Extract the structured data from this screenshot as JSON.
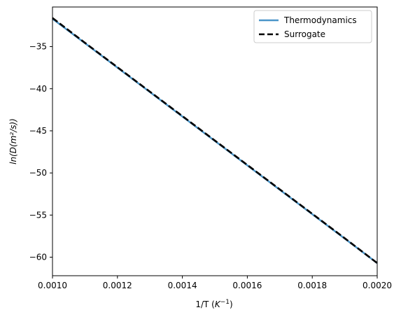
{
  "chart_data": {
    "type": "line",
    "title": "",
    "xlabel": "1/T",
    "xlabel_unit_base": "K",
    "xlabel_unit_exp": "−1",
    "ylabel": "ln(D(m²/s))",
    "xlim": [
      0.001,
      0.002
    ],
    "ylim": [
      -62.2,
      -30.3
    ],
    "xticks": [
      0.001,
      0.0012,
      0.0014,
      0.0016,
      0.0018,
      0.002
    ],
    "xtick_labels": [
      "0.0010",
      "0.0012",
      "0.0014",
      "0.0016",
      "0.0018",
      "0.0020"
    ],
    "yticks": [
      -35,
      -40,
      -45,
      -50,
      -55,
      -60
    ],
    "ytick_labels": [
      "−35",
      "−40",
      "−45",
      "−50",
      "−55",
      "−60"
    ],
    "grid": false,
    "legend_position": "top-right",
    "series": [
      {
        "name": "Thermodynamics",
        "style": "solid",
        "color": "#4a95c9",
        "x": [
          0.001,
          0.002
        ],
        "y": [
          -31.7,
          -60.7
        ]
      },
      {
        "name": "Surrogate",
        "style": "dashed",
        "color": "#000000",
        "x": [
          0.001,
          0.0011,
          0.0012,
          0.0013,
          0.0014,
          0.0015,
          0.0016,
          0.0017,
          0.0018,
          0.0019,
          0.002
        ],
        "y": [
          -31.6,
          -34.55,
          -37.45,
          -40.35,
          -43.25,
          -46.15,
          -49.05,
          -51.95,
          -54.85,
          -57.75,
          -60.7
        ]
      }
    ]
  }
}
